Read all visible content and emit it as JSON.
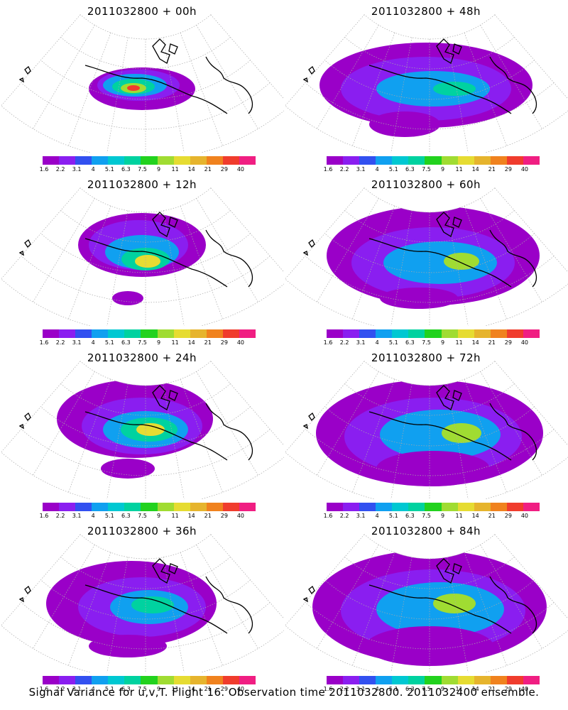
{
  "panels": [
    {
      "title": "2011032800 + 00h",
      "stage": 0
    },
    {
      "title": "2011032800 + 48h",
      "stage": 4
    },
    {
      "title": "2011032800 + 12h",
      "stage": 1
    },
    {
      "title": "2011032800 + 60h",
      "stage": 5
    },
    {
      "title": "2011032800 + 24h",
      "stage": 2
    },
    {
      "title": "2011032800 + 72h",
      "stage": 6
    },
    {
      "title": "2011032800 + 36h",
      "stage": 3
    },
    {
      "title": "2011032800 + 84h",
      "stage": 7
    }
  ],
  "colorbar": {
    "colors": [
      "#9a00c8",
      "#8a1ef0",
      "#3250f0",
      "#10a0f0",
      "#00c8d2",
      "#00d2a0",
      "#22d21e",
      "#a0dc32",
      "#e6dc32",
      "#e6b42d",
      "#f0821e",
      "#f03c2d",
      "#f01e82"
    ],
    "labels": [
      "1.6",
      "2.2",
      "3.1",
      "4",
      "5.1",
      "6.3",
      "7.5",
      "9",
      "11",
      "14",
      "21",
      "29",
      "40"
    ]
  },
  "footer": "Signal Variance for u,v,T. Flight 16. Observation time 2011032800. 2011032400 ensemble."
}
